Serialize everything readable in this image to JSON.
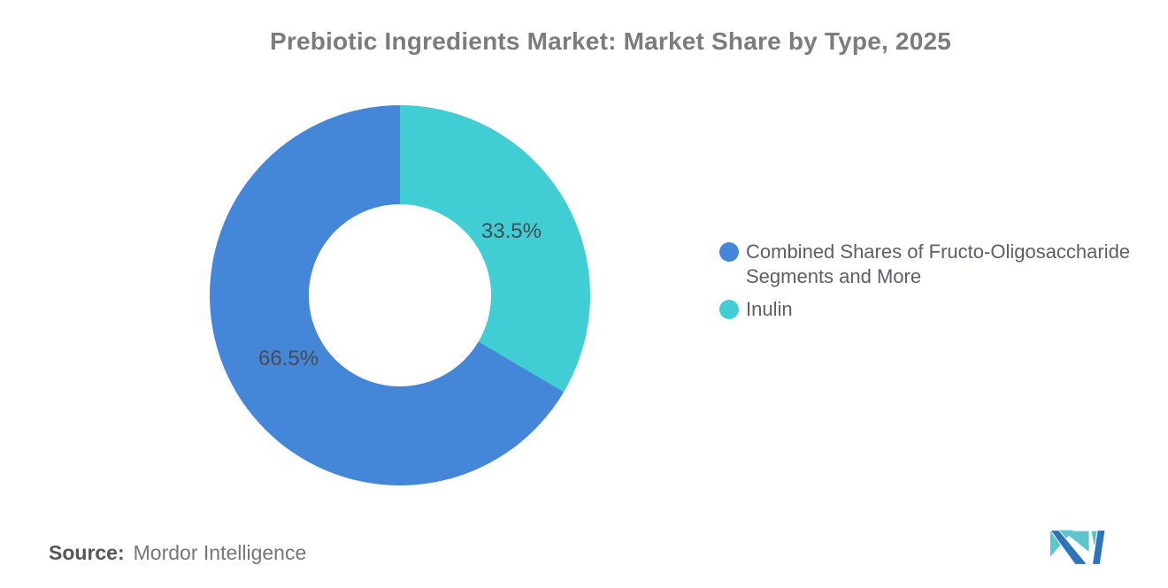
{
  "title": "Prebiotic Ingredients Market: Market Share by Type, 2025",
  "chart_data": {
    "type": "pie",
    "subtype": "donut",
    "title": "Prebiotic Ingredients Market: Market Share by Type, 2025",
    "unit": "%",
    "slices": [
      {
        "label": "Combined Shares of Fructo-Oligosaccharide Segments and More",
        "value": 66.5,
        "display": "66.5%",
        "color": "#4486D8"
      },
      {
        "label": "Inulin",
        "value": 33.5,
        "display": "33.5%",
        "color": "#41CDD4"
      }
    ],
    "start_angle_deg": 0,
    "direction": "clockwise",
    "first_slice_at_top": "Inulin",
    "inner_radius_ratio": 0.48,
    "legend_position": "right"
  },
  "source": {
    "label": "Source:",
    "value": "Mordor Intelligence"
  },
  "logo": {
    "name": "mordor-intelligence-logo",
    "blue": "#2E74B8",
    "teal": "#5BC6CB"
  },
  "colors": {
    "slice_blue": "#4486D8",
    "slice_teal": "#41CDD4",
    "title_text": "#7B7C80",
    "slice_label_text": "#4A4A52",
    "legend_text": "#5E5F64",
    "source_text": "#767676",
    "background": "#FFFFFF"
  }
}
